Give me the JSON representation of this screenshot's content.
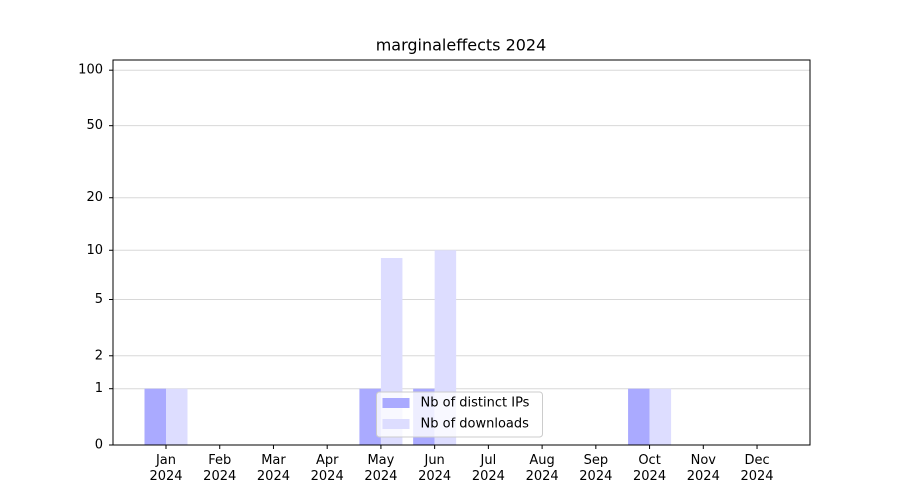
{
  "chart_data": {
    "type": "bar",
    "title": "marginaleffects 2024",
    "categories": [
      "Jan 2024",
      "Feb 2024",
      "Mar 2024",
      "Apr 2024",
      "May 2024",
      "Jun 2024",
      "Jul 2024",
      "Aug 2024",
      "Sep 2024",
      "Oct 2024",
      "Nov 2024",
      "Dec 2024"
    ],
    "series": [
      {
        "name": "Nb of distinct IPs",
        "color": "#aaaaff",
        "values": [
          1,
          0,
          0,
          0,
          1,
          1,
          0,
          0,
          0,
          1,
          0,
          0
        ]
      },
      {
        "name": "Nb of downloads",
        "color": "#ddddff",
        "values": [
          1,
          0,
          0,
          0,
          9,
          10,
          0,
          0,
          0,
          1,
          0,
          0
        ]
      }
    ],
    "yscale": "log1p",
    "ylim": [
      0,
      113.5
    ],
    "yticks": [
      0,
      1,
      2,
      5,
      10,
      20,
      50,
      100
    ],
    "grid": true,
    "legend": "lower center"
  }
}
